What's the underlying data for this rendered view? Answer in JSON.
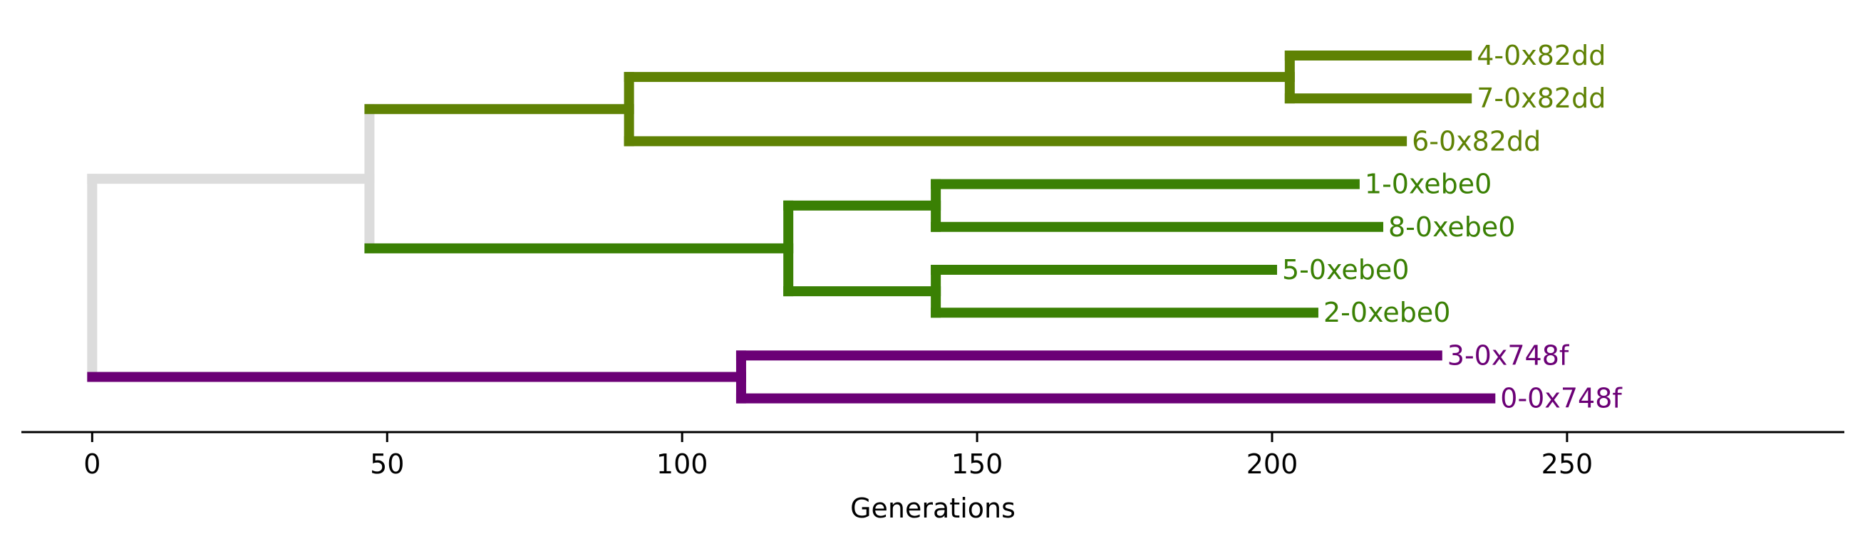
{
  "chart_data": {
    "type": "dendrogram",
    "xlabel": "Generations",
    "xlim": [
      -12,
      297
    ],
    "xticks": [
      0,
      50,
      100,
      150,
      200,
      250
    ],
    "leaf_order": [
      "4-0x82dd",
      "7-0x82dd",
      "6-0x82dd",
      "1-0xebe0",
      "8-0xebe0",
      "5-0xebe0",
      "2-0xebe0",
      "3-0x748f",
      "0-0x748f"
    ],
    "colors": {
      "root": "#dcdcdc",
      "clade_0x82dd": "#5f8204",
      "clade_0xebe0": "#3a8004",
      "clade_0x748f": "#6b0076"
    },
    "leaves": [
      {
        "label": "4-0x82dd",
        "x": 233,
        "clade": "clade_0x82dd"
      },
      {
        "label": "7-0x82dd",
        "x": 233,
        "clade": "clade_0x82dd"
      },
      {
        "label": "6-0x82dd",
        "x": 222,
        "clade": "clade_0x82dd"
      },
      {
        "label": "1-0xebe0",
        "x": 214,
        "clade": "clade_0xebe0"
      },
      {
        "label": "8-0xebe0",
        "x": 218,
        "clade": "clade_0xebe0"
      },
      {
        "label": "5-0xebe0",
        "x": 200,
        "clade": "clade_0xebe0"
      },
      {
        "label": "2-0xebe0",
        "x": 207,
        "clade": "clade_0xebe0"
      },
      {
        "label": "3-0x748f",
        "x": 228,
        "clade": "clade_0x748f"
      },
      {
        "label": "0-0x748f",
        "x": 237,
        "clade": "clade_0x748f"
      }
    ],
    "merges": [
      {
        "id": "n47",
        "x": 203,
        "children": [
          "4-0x82dd",
          "7-0x82dd"
        ],
        "clade": "clade_0x82dd"
      },
      {
        "id": "n476",
        "x": 91,
        "children": [
          "n47",
          "6-0x82dd"
        ],
        "clade": "clade_0x82dd"
      },
      {
        "id": "n18",
        "x": 143,
        "children": [
          "1-0xebe0",
          "8-0xebe0"
        ],
        "clade": "clade_0xebe0"
      },
      {
        "id": "n52",
        "x": 143,
        "children": [
          "5-0xebe0",
          "2-0xebe0"
        ],
        "clade": "clade_0xebe0"
      },
      {
        "id": "n1852",
        "x": 118,
        "children": [
          "n18",
          "n52"
        ],
        "clade": "clade_0xebe0"
      },
      {
        "id": "n30",
        "x": 110,
        "children": [
          "3-0x748f",
          "0-0x748f"
        ],
        "clade": "clade_0x748f"
      },
      {
        "id": "nTop",
        "x": 47,
        "children": [
          "n476",
          "n1852"
        ],
        "clade": "root"
      },
      {
        "id": "root",
        "x": 0,
        "children": [
          "nTop",
          "n30"
        ],
        "clade": "root"
      }
    ],
    "root_link_clade": {
      "nTop": "clade_0x82dd|clade_0xebe0",
      "n30": "clade_0x748f"
    }
  }
}
